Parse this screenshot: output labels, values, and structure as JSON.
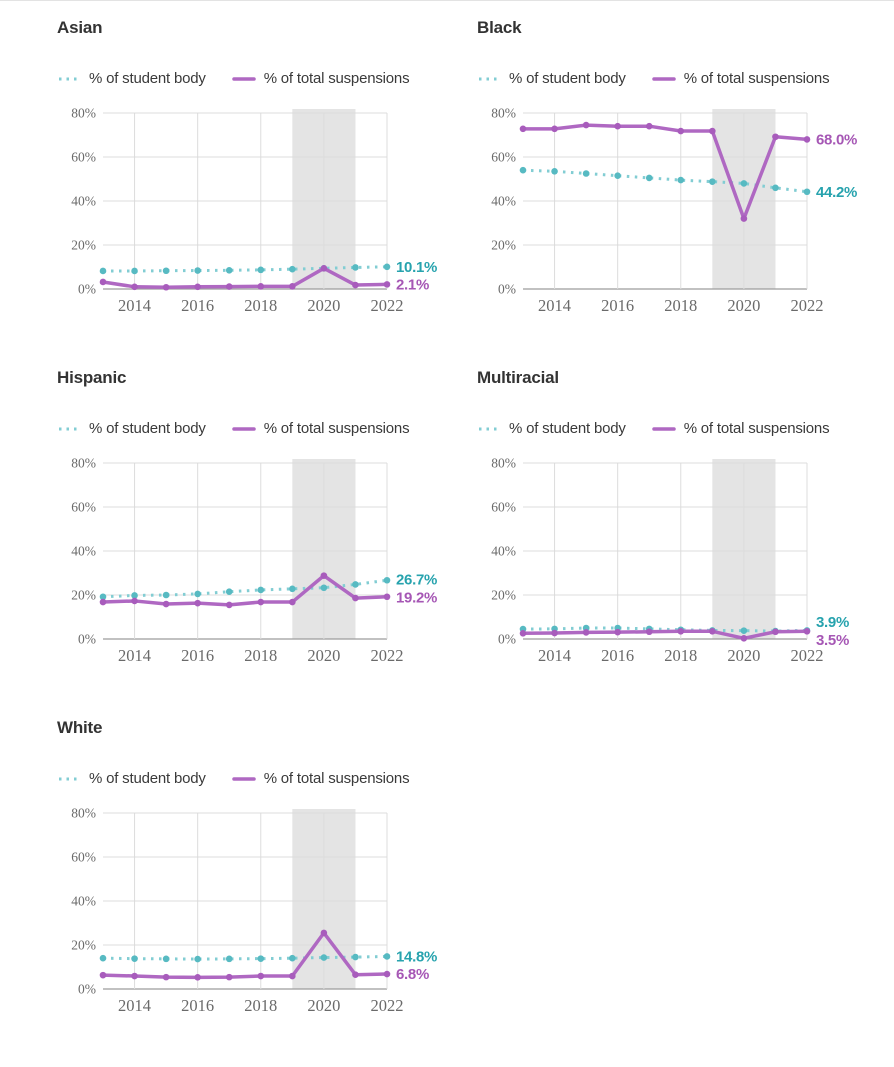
{
  "legend": {
    "student_body": "% of student body",
    "suspensions": "% of total suspensions"
  },
  "colors": {
    "student_body_line": "#82cdd3",
    "student_body_marker": "#57bac2",
    "student_body_label": "#27a3ae",
    "suspensions_line": "#af68c2",
    "suspensions_marker": "#a85cbc",
    "suspensions_label": "#a657b5",
    "band": "#e4e4e4",
    "grid": "#dcdcdc",
    "axis": "#9c9c9c",
    "tick_text": "#6a6a6a",
    "title_text": "#333333"
  },
  "axis": {
    "y_tick_labels": [
      "80%",
      "60%",
      "40%",
      "20%",
      "0%"
    ],
    "y_tick_values": [
      80,
      60,
      40,
      20,
      0
    ],
    "x_tick_labels": [
      "2014",
      "2016",
      "2018",
      "2020",
      "2022"
    ],
    "x_tick_values": [
      2014,
      2016,
      2018,
      2020,
      2022
    ],
    "ylim": [
      0,
      80
    ],
    "shaded_band_x": [
      2019,
      2021
    ]
  },
  "chart_data": [
    {
      "type": "line",
      "title": "Asian",
      "x": [
        2013,
        2014,
        2015,
        2016,
        2017,
        2018,
        2019,
        2020,
        2021,
        2022
      ],
      "ylim": [
        0,
        80
      ],
      "shaded_band_x": [
        2019,
        2021
      ],
      "series": [
        {
          "name": "% of student body",
          "style": "dotted",
          "values": [
            8.2,
            8.2,
            8.3,
            8.4,
            8.5,
            8.7,
            9.0,
            9.4,
            9.8,
            10.1
          ],
          "end_label": "10.1%"
        },
        {
          "name": "% of total suspensions",
          "style": "solid",
          "values": [
            3.2,
            1.0,
            0.8,
            1.0,
            1.1,
            1.2,
            1.2,
            9.4,
            1.8,
            2.1
          ],
          "end_label": "2.1%"
        }
      ]
    },
    {
      "type": "line",
      "title": "Black",
      "x": [
        2013,
        2014,
        2015,
        2016,
        2017,
        2018,
        2019,
        2020,
        2021,
        2022
      ],
      "ylim": [
        0,
        80
      ],
      "shaded_band_x": [
        2019,
        2021
      ],
      "series": [
        {
          "name": "% of student body",
          "style": "dotted",
          "values": [
            54.0,
            53.5,
            52.5,
            51.5,
            50.5,
            49.5,
            48.8,
            48.0,
            46.0,
            44.2
          ],
          "end_label": "44.2%"
        },
        {
          "name": "% of total suspensions",
          "style": "solid",
          "values": [
            72.8,
            72.8,
            74.5,
            74.0,
            74.0,
            71.8,
            71.8,
            32.0,
            69.2,
            68.0
          ],
          "end_label": "68.0%"
        }
      ]
    },
    {
      "type": "line",
      "title": "Hispanic",
      "x": [
        2013,
        2014,
        2015,
        2016,
        2017,
        2018,
        2019,
        2020,
        2021,
        2022
      ],
      "ylim": [
        0,
        80
      ],
      "shaded_band_x": [
        2019,
        2021
      ],
      "series": [
        {
          "name": "% of student body",
          "style": "dotted",
          "values": [
            19.2,
            19.8,
            20.0,
            20.5,
            21.5,
            22.3,
            22.8,
            23.3,
            24.8,
            26.7
          ],
          "end_label": "26.7%"
        },
        {
          "name": "% of total suspensions",
          "style": "solid",
          "values": [
            16.8,
            17.3,
            15.9,
            16.3,
            15.5,
            16.8,
            16.8,
            28.8,
            18.6,
            19.2
          ],
          "end_label": "19.2%"
        }
      ]
    },
    {
      "type": "line",
      "title": "Multiracial",
      "x": [
        2013,
        2014,
        2015,
        2016,
        2017,
        2018,
        2019,
        2020,
        2021,
        2022
      ],
      "ylim": [
        0,
        80
      ],
      "shaded_band_x": [
        2019,
        2021
      ],
      "series": [
        {
          "name": "% of student body",
          "style": "dotted",
          "values": [
            4.5,
            4.6,
            5.0,
            5.0,
            4.6,
            4.2,
            3.9,
            3.8,
            3.6,
            3.9
          ],
          "end_label": "3.9%"
        },
        {
          "name": "% of total suspensions",
          "style": "solid",
          "values": [
            2.6,
            2.7,
            3.0,
            3.1,
            3.3,
            3.5,
            3.5,
            0.3,
            3.3,
            3.5
          ],
          "end_label": "3.5%"
        }
      ]
    },
    {
      "type": "line",
      "title": "White",
      "x": [
        2013,
        2014,
        2015,
        2016,
        2017,
        2018,
        2019,
        2020,
        2021,
        2022
      ],
      "ylim": [
        0,
        80
      ],
      "shaded_band_x": [
        2019,
        2021
      ],
      "series": [
        {
          "name": "% of student body",
          "style": "dotted",
          "values": [
            14.0,
            13.8,
            13.7,
            13.6,
            13.7,
            13.8,
            14.0,
            14.3,
            14.5,
            14.8
          ],
          "end_label": "14.8%"
        },
        {
          "name": "% of total suspensions",
          "style": "solid",
          "values": [
            6.3,
            5.9,
            5.4,
            5.3,
            5.4,
            5.9,
            5.9,
            25.5,
            6.5,
            6.8
          ],
          "end_label": "6.8%"
        }
      ]
    }
  ]
}
